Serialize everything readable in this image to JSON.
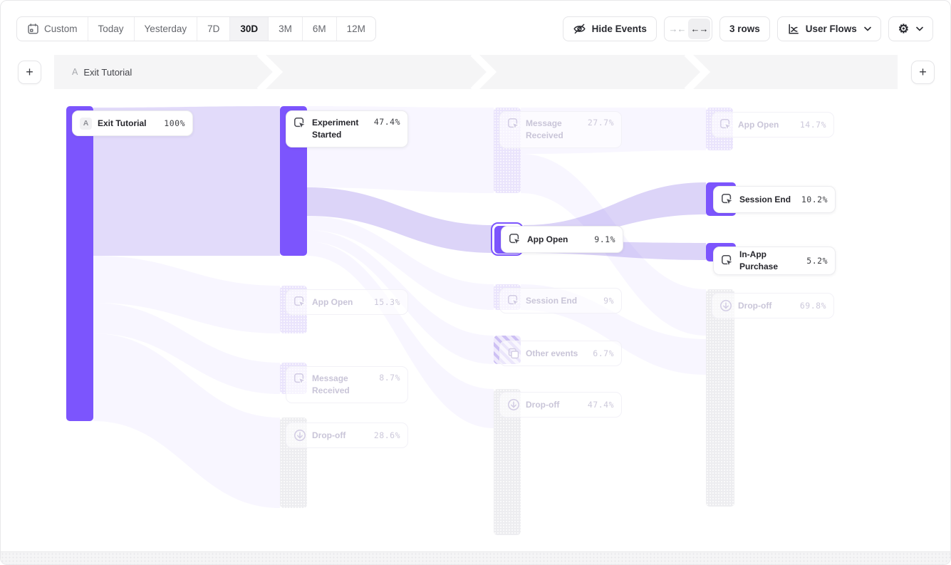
{
  "colors": {
    "accent": "#7C55FD",
    "ribbon_strong": "#E2DBFA",
    "ribbon_mid": "#DCD4F8",
    "ribbon_faint": "rgba(124,85,253,0.05)",
    "node_faded_purple": "#EAE4FC",
    "node_gray": "#EDEDF0",
    "band_bg": "#F5F5F6"
  },
  "toolbar": {
    "date_ranges": [
      {
        "label": "Custom",
        "selected": false,
        "icon": "calendar-icon"
      },
      {
        "label": "Today",
        "selected": false
      },
      {
        "label": "Yesterday",
        "selected": false
      },
      {
        "label": "7D",
        "selected": false
      },
      {
        "label": "30D",
        "selected": true
      },
      {
        "label": "3M",
        "selected": false
      },
      {
        "label": "6M",
        "selected": false
      },
      {
        "label": "12M",
        "selected": false
      }
    ],
    "hide_events_label": "Hide Events",
    "collapse_glyph": "→←",
    "expand_glyph": "←→",
    "rows_label": "3 rows",
    "view_label": "User Flows",
    "gear_glyph": "⚙"
  },
  "steps": {
    "add_left": "+",
    "add_right": "+",
    "segment_badge": "A",
    "segment_label": "Exit Tutorial"
  },
  "flow": {
    "nodes": [
      {
        "label": "Exit Tutorial",
        "value": "100%",
        "column": 1,
        "state": "active",
        "kind": "event",
        "badge": "A"
      },
      {
        "label": "Experiment Started",
        "value": "47.4%",
        "column": 2,
        "state": "active",
        "kind": "event"
      },
      {
        "label": "App Open",
        "value": "15.3%",
        "column": 2,
        "state": "faded",
        "kind": "event"
      },
      {
        "label": "Message Received",
        "value": "8.7%",
        "column": 2,
        "state": "faded",
        "kind": "event"
      },
      {
        "label": "Drop-off",
        "value": "28.6%",
        "column": 2,
        "state": "faded",
        "kind": "dropoff"
      },
      {
        "label": "Message Received",
        "value": "27.7%",
        "column": 3,
        "state": "faded",
        "kind": "event"
      },
      {
        "label": "App Open",
        "value": "9.1%",
        "column": 3,
        "state": "selected",
        "kind": "event"
      },
      {
        "label": "Session End",
        "value": "9%",
        "column": 3,
        "state": "faded",
        "kind": "event"
      },
      {
        "label": "Other events",
        "value": "6.7%",
        "column": 3,
        "state": "faded",
        "kind": "other"
      },
      {
        "label": "Drop-off",
        "value": "47.4%",
        "column": 3,
        "state": "faded",
        "kind": "dropoff"
      },
      {
        "label": "App Open",
        "value": "14.7%",
        "column": 4,
        "state": "faded",
        "kind": "event"
      },
      {
        "label": "Session End",
        "value": "10.2%",
        "column": 4,
        "state": "active",
        "kind": "event"
      },
      {
        "label": "In-App Purchase",
        "value": "5.2%",
        "column": 4,
        "state": "active",
        "kind": "event"
      },
      {
        "label": "Drop-off",
        "value": "69.8%",
        "column": 4,
        "state": "faded",
        "kind": "dropoff"
      }
    ]
  }
}
